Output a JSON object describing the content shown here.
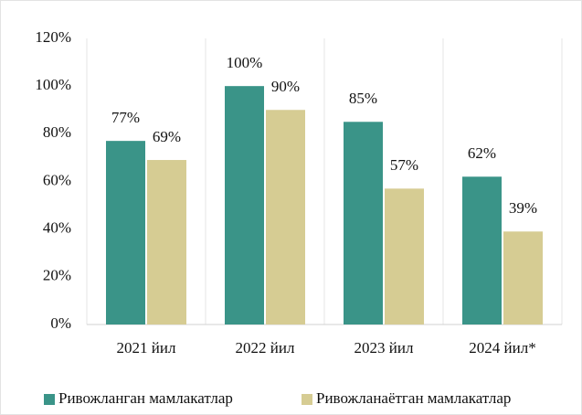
{
  "chart_data": {
    "type": "bar",
    "categories": [
      "2021 йил",
      "2022 йил",
      "2023 йил",
      "2024 йил*"
    ],
    "series": [
      {
        "name": "Ривожланган мамлакатлар",
        "color": "#3a9488",
        "values": [
          77,
          100,
          85,
          62
        ],
        "value_labels": [
          "77%",
          "100%",
          "85%",
          "62%"
        ]
      },
      {
        "name": "Ривожланаётган мамлакатлар",
        "color": "#d6cc93",
        "values": [
          69,
          90,
          57,
          39
        ],
        "value_labels": [
          "69%",
          "90%",
          "57%",
          "39%"
        ]
      }
    ],
    "ylim": [
      0,
      120
    ],
    "yticks": [
      {
        "value": 0,
        "label": "0%"
      },
      {
        "value": 20,
        "label": "20%"
      },
      {
        "value": 40,
        "label": "40%"
      },
      {
        "value": 60,
        "label": "60%"
      },
      {
        "value": 80,
        "label": "80%"
      },
      {
        "value": 100,
        "label": "100%"
      },
      {
        "value": 120,
        "label": "120%"
      }
    ],
    "legend": "bottom"
  }
}
